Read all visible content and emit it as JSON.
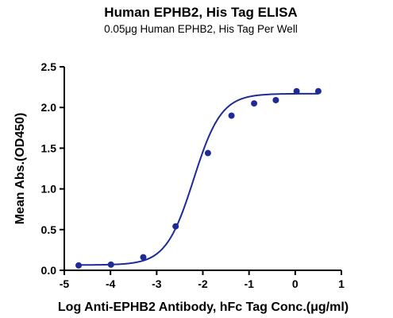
{
  "chart_data": {
    "type": "scatter",
    "title": "Human EPHB2, His Tag ELISA",
    "subtitle": "0.05μg Human EPHB2, His Tag Per Well",
    "xlabel": "Log Anti-EPHB2 Antibody, hFc Tag Conc.(μg/ml)",
    "ylabel": "Mean Abs.(OD450)",
    "xlim": [
      -5,
      1
    ],
    "ylim": [
      0,
      2.5
    ],
    "x_ticks": [
      "-5",
      "-4",
      "-3",
      "-2",
      "-1",
      "0",
      "1"
    ],
    "y_ticks": [
      "0.0",
      "0.5",
      "1.0",
      "1.5",
      "2.0",
      "2.5"
    ],
    "grid": false,
    "series": [
      {
        "color": "#1f2a9a",
        "points": [
          {
            "x": -4.69,
            "y": 0.06
          },
          {
            "x": -3.99,
            "y": 0.07
          },
          {
            "x": -3.29,
            "y": 0.16
          },
          {
            "x": -2.59,
            "y": 0.54
          },
          {
            "x": -1.89,
            "y": 1.44
          },
          {
            "x": -1.38,
            "y": 1.9
          },
          {
            "x": -0.89,
            "y": 2.05
          },
          {
            "x": -0.42,
            "y": 2.09
          },
          {
            "x": 0.03,
            "y": 2.2
          },
          {
            "x": 0.5,
            "y": 2.2
          }
        ],
        "fit": {
          "model": "4PL",
          "bottom": 0.065,
          "top": 2.17,
          "log_ec50": -2.2,
          "hill": 1.45
        }
      }
    ]
  }
}
